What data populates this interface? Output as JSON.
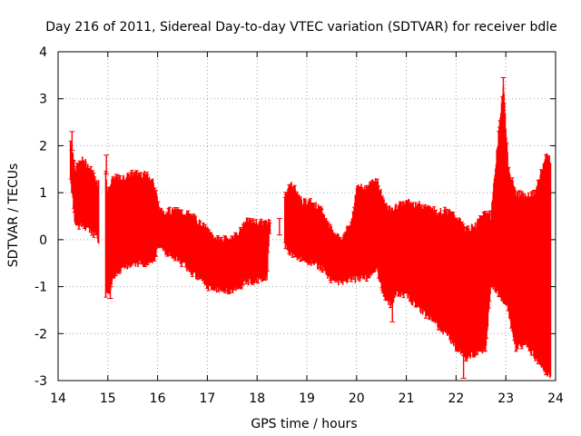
{
  "chart_data": {
    "type": "errorbar",
    "title": "Day 216 of 2011, Sidereal Day-to-day VTEC variation (SDTVAR) for receiver bdle",
    "xlabel": "GPS time / hours",
    "ylabel": "SDTVAR / TECUs",
    "xlim": [
      14,
      24
    ],
    "ylim": [
      -3,
      4
    ],
    "xticks": [
      "14",
      "15",
      "16",
      "17",
      "18",
      "19",
      "20",
      "21",
      "22",
      "23",
      "24"
    ],
    "yticks": [
      "-3",
      "-2",
      "-1",
      "0",
      "1",
      "2",
      "3",
      "4"
    ],
    "grid": true,
    "series_color": "#ff0000",
    "series": [
      {
        "name": "SDTVAR",
        "x": [
          14.25,
          14.35,
          14.5,
          14.65,
          14.8,
          14.95,
          15.0,
          15.1,
          15.3,
          15.5,
          15.7,
          15.9,
          16.05,
          16.2,
          16.4,
          16.6,
          16.8,
          17.0,
          17.2,
          17.4,
          17.6,
          17.8,
          18.0,
          18.2,
          18.25,
          18.5,
          18.7,
          18.9,
          19.1,
          19.3,
          19.5,
          19.7,
          19.9,
          20.0,
          20.2,
          20.4,
          20.55,
          20.7,
          20.8,
          21.0,
          21.2,
          21.4,
          21.6,
          21.8,
          22.0,
          22.2,
          22.4,
          22.6,
          22.7,
          22.95,
          23.05,
          23.2,
          23.4,
          23.6,
          23.8,
          23.9
        ],
        "upper": [
          2.1,
          1.5,
          1.7,
          1.5,
          1.2,
          1.5,
          1.0,
          1.3,
          1.3,
          1.4,
          1.4,
          1.3,
          0.6,
          0.6,
          0.6,
          0.55,
          0.4,
          0.2,
          0.0,
          0.0,
          0.1,
          0.4,
          0.35,
          0.35,
          0.4,
          0.9,
          1.2,
          0.8,
          0.8,
          0.6,
          0.2,
          0.0,
          0.4,
          1.1,
          1.1,
          1.3,
          0.8,
          0.6,
          0.7,
          0.8,
          0.75,
          0.7,
          0.6,
          0.6,
          0.5,
          0.2,
          0.3,
          0.6,
          0.5,
          3.3,
          1.5,
          1.0,
          0.9,
          1.0,
          1.8,
          1.7
        ],
        "lower": [
          1.3,
          0.3,
          0.3,
          0.2,
          0.0,
          -1.2,
          -1.2,
          -0.8,
          -0.6,
          -0.5,
          -0.5,
          -0.5,
          -0.1,
          -0.3,
          -0.4,
          -0.6,
          -0.8,
          -1.0,
          -1.05,
          -1.1,
          -1.0,
          -0.9,
          -0.85,
          -0.8,
          0.2,
          0.0,
          -0.3,
          -0.4,
          -0.5,
          -0.6,
          -0.85,
          -0.9,
          -0.8,
          -0.85,
          -0.8,
          -0.6,
          -1.2,
          -1.4,
          -1.1,
          -1.2,
          -1.4,
          -1.6,
          -1.8,
          -2.0,
          -2.3,
          -2.5,
          -2.4,
          -2.3,
          -0.9,
          -1.3,
          -1.5,
          -2.3,
          -2.2,
          -2.5,
          -2.8,
          -2.9
        ]
      }
    ]
  }
}
